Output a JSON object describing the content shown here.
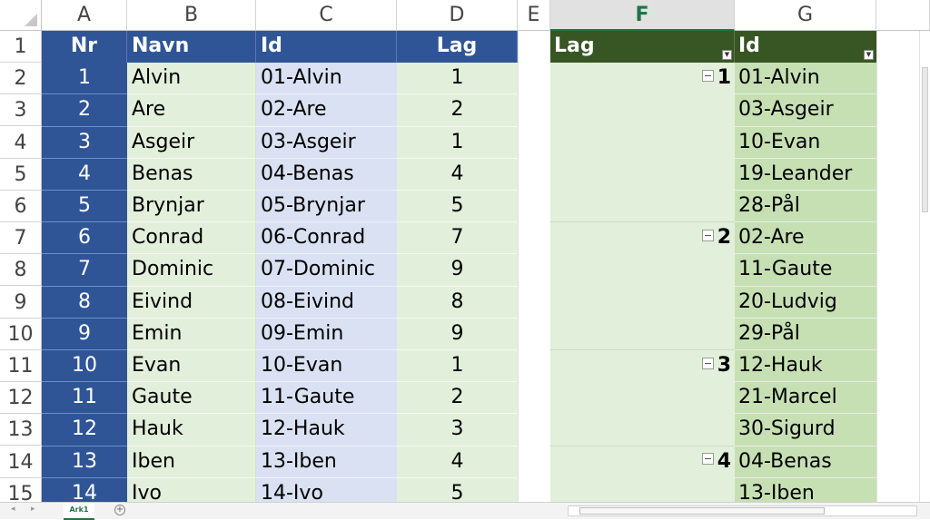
{
  "columns": [
    "A",
    "B",
    "C",
    "D",
    "E",
    "F",
    "G"
  ],
  "selected_column": "F",
  "row_numbers": [
    "1",
    "2",
    "3",
    "4",
    "5",
    "6",
    "7",
    "8",
    "9",
    "10",
    "11",
    "12",
    "13",
    "14",
    "15"
  ],
  "table_header": {
    "nr": "Nr",
    "navn": "Navn",
    "id": "Id",
    "lag": "Lag"
  },
  "table_rows": [
    {
      "nr": "1",
      "navn": "Alvin",
      "id": "01-Alvin",
      "lag": "1"
    },
    {
      "nr": "2",
      "navn": "Are",
      "id": "02-Are",
      "lag": "2"
    },
    {
      "nr": "3",
      "navn": "Asgeir",
      "id": "03-Asgeir",
      "lag": "1"
    },
    {
      "nr": "4",
      "navn": "Benas",
      "id": "04-Benas",
      "lag": "4"
    },
    {
      "nr": "5",
      "navn": "Brynjar",
      "id": "05-Brynjar",
      "lag": "5"
    },
    {
      "nr": "6",
      "navn": "Conrad",
      "id": "06-Conrad",
      "lag": "7"
    },
    {
      "nr": "7",
      "navn": "Dominic",
      "id": "07-Dominic",
      "lag": "9"
    },
    {
      "nr": "8",
      "navn": "Eivind",
      "id": "08-Eivind",
      "lag": "8"
    },
    {
      "nr": "9",
      "navn": "Emin",
      "id": "09-Emin",
      "lag": "9"
    },
    {
      "nr": "10",
      "navn": "Evan",
      "id": "10-Evan",
      "lag": "1"
    },
    {
      "nr": "11",
      "navn": "Gaute",
      "id": "11-Gaute",
      "lag": "2"
    },
    {
      "nr": "12",
      "navn": "Hauk",
      "id": "12-Hauk",
      "lag": "3"
    },
    {
      "nr": "13",
      "navn": "Iben",
      "id": "13-Iben",
      "lag": "4"
    },
    {
      "nr": "14",
      "navn": "Ivo",
      "id": "14-Ivo",
      "lag": "5"
    }
  ],
  "pivot_header": {
    "lag": "Lag",
    "id": "Id"
  },
  "pivot_groups": [
    {
      "lag": "1",
      "ids": [
        "01-Alvin",
        "03-Asgeir",
        "10-Evan",
        "19-Leander",
        "28-Pål"
      ]
    },
    {
      "lag": "2",
      "ids": [
        "02-Are",
        "11-Gaute",
        "20-Ludvig",
        "29-Pål"
      ]
    },
    {
      "lag": "3",
      "ids": [
        "12-Hauk",
        "21-Marcel",
        "30-Sigurd"
      ]
    },
    {
      "lag": "4",
      "ids": [
        "04-Benas",
        "13-Iben"
      ]
    }
  ],
  "sheet_tab": "Ark1",
  "colors": {
    "table_header": "#2f5597",
    "pivot_header": "#375623",
    "navn_fill": "#e2efda",
    "id_fill": "#d9e1f2",
    "pivot_id_fill": "#c6e0b4"
  },
  "icons": {
    "filter": "dropdown-arrow-icon",
    "collapse": "minus-box-icon",
    "add_sheet": "plus-circle-icon"
  }
}
